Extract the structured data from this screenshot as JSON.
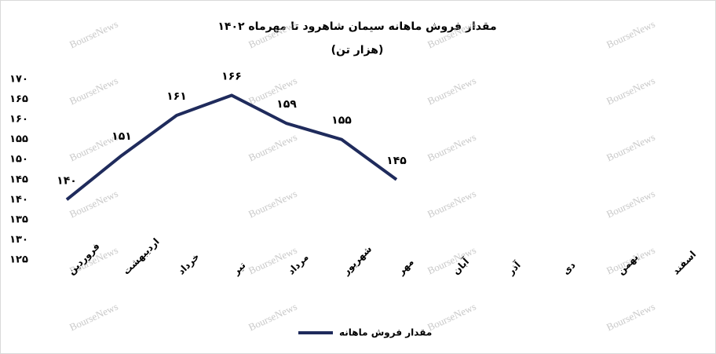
{
  "chart_data": {
    "type": "line",
    "title": "مقدار فروش ماهانه سیمان شاهرود تا مهرماه ۱۴۰۲",
    "subtitle": "(هزار تن)",
    "watermark": "BourseNews",
    "categories": [
      "فروردین",
      "اردیبهشت",
      "خرداد",
      "تیر",
      "مرداد",
      "شهریور",
      "مهر",
      "آبان",
      "آذر",
      "دی",
      "بهمن",
      "اسفند"
    ],
    "series": [
      {
        "name": "مقدار فروش ماهانه",
        "color": "#1f2b5c",
        "values": [
          140,
          151,
          161,
          166,
          159,
          155,
          145,
          null,
          null,
          null,
          null,
          null
        ],
        "value_labels": [
          "۱۴۰",
          "۱۵۱",
          "۱۶۱",
          "۱۶۶",
          "۱۵۹",
          "۱۵۵",
          "۱۴۵",
          null,
          null,
          null,
          null,
          null
        ]
      }
    ],
    "ylim": [
      125,
      170
    ],
    "yticks": [
      {
        "value": 125,
        "label": "۱۲۵"
      },
      {
        "value": 130,
        "label": "۱۳۰"
      },
      {
        "value": 135,
        "label": "۱۳۵"
      },
      {
        "value": 140,
        "label": "۱۴۰"
      },
      {
        "value": 145,
        "label": "۱۴۵"
      },
      {
        "value": 150,
        "label": "۱۵۰"
      },
      {
        "value": 155,
        "label": "۱۵۵"
      },
      {
        "value": 160,
        "label": "۱۶۰"
      },
      {
        "value": 165,
        "label": "۱۶۵"
      },
      {
        "value": 170,
        "label": "۱۷۰"
      }
    ],
    "grid": false,
    "legend": "bottom"
  }
}
